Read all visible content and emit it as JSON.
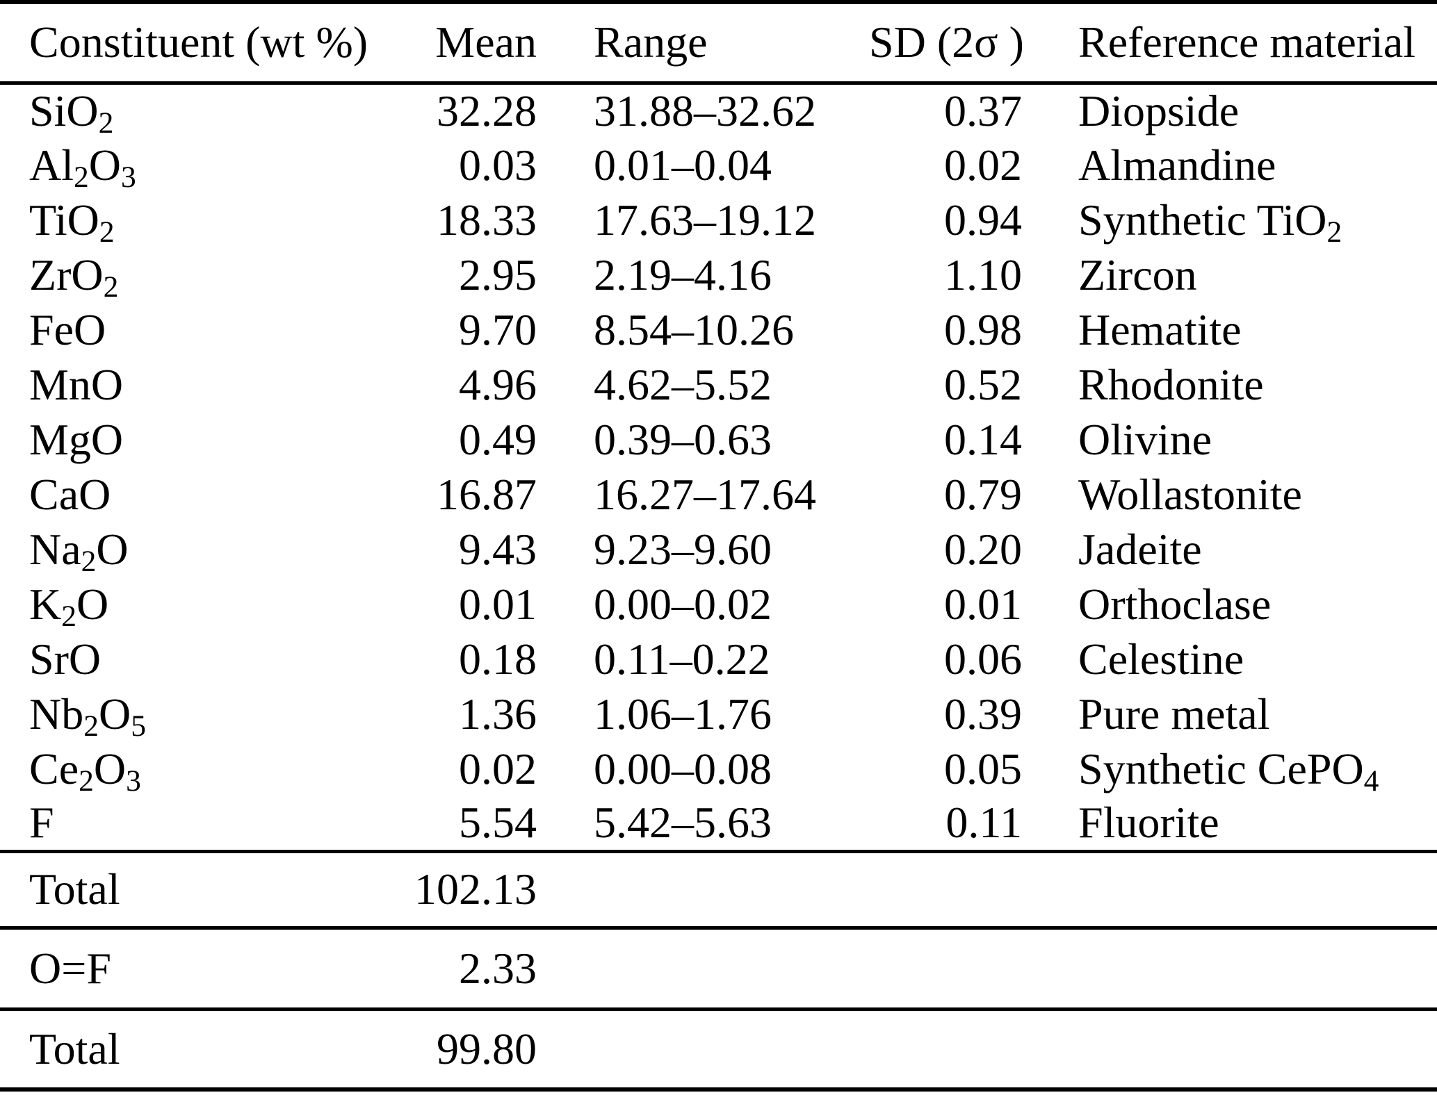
{
  "table": {
    "columns": [
      "Constituent (wt %)",
      "Mean",
      "Range",
      "SD (2σ )",
      "Reference material"
    ],
    "rows": [
      {
        "constituent": "SiO_2",
        "mean": "32.28",
        "range": "31.88–32.62",
        "sd": "0.37",
        "reference": "Diopside"
      },
      {
        "constituent": "Al_2O_3",
        "mean": "0.03",
        "range": "0.01–0.04",
        "sd": "0.02",
        "reference": "Almandine"
      },
      {
        "constituent": "TiO_2",
        "mean": "18.33",
        "range": "17.63–19.12",
        "sd": "0.94",
        "reference": "Synthetic TiO_2"
      },
      {
        "constituent": "ZrO_2",
        "mean": "2.95",
        "range": "2.19–4.16",
        "sd": "1.10",
        "reference": "Zircon"
      },
      {
        "constituent": "FeO",
        "mean": "9.70",
        "range": "8.54–10.26",
        "sd": "0.98",
        "reference": "Hematite"
      },
      {
        "constituent": "MnO",
        "mean": "4.96",
        "range": "4.62–5.52",
        "sd": "0.52",
        "reference": "Rhodonite"
      },
      {
        "constituent": "MgO",
        "mean": "0.49",
        "range": "0.39–0.63",
        "sd": "0.14",
        "reference": "Olivine"
      },
      {
        "constituent": "CaO",
        "mean": "16.87",
        "range": "16.27–17.64",
        "sd": "0.79",
        "reference": "Wollastonite"
      },
      {
        "constituent": "Na_2O",
        "mean": "9.43",
        "range": "9.23–9.60",
        "sd": "0.20",
        "reference": "Jadeite"
      },
      {
        "constituent": "K_2O",
        "mean": "0.01",
        "range": "0.00–0.02",
        "sd": "0.01",
        "reference": "Orthoclase"
      },
      {
        "constituent": "SrO",
        "mean": "0.18",
        "range": "0.11–0.22",
        "sd": "0.06",
        "reference": "Celestine"
      },
      {
        "constituent": "Nb_2O_5",
        "mean": "1.36",
        "range": "1.06–1.76",
        "sd": "0.39",
        "reference": "Pure metal"
      },
      {
        "constituent": "Ce_2O_3",
        "mean": "0.02",
        "range": "0.00–0.08",
        "sd": "0.05",
        "reference": "Synthetic CePO_4"
      },
      {
        "constituent": "F",
        "mean": "5.54",
        "range": "5.42–5.63",
        "sd": "0.11",
        "reference": "Fluorite"
      }
    ],
    "footer": [
      {
        "label": "Total",
        "value": "102.13"
      },
      {
        "label": "O=F",
        "value": "2.33"
      },
      {
        "label": "Total",
        "value": "99.80"
      }
    ]
  }
}
